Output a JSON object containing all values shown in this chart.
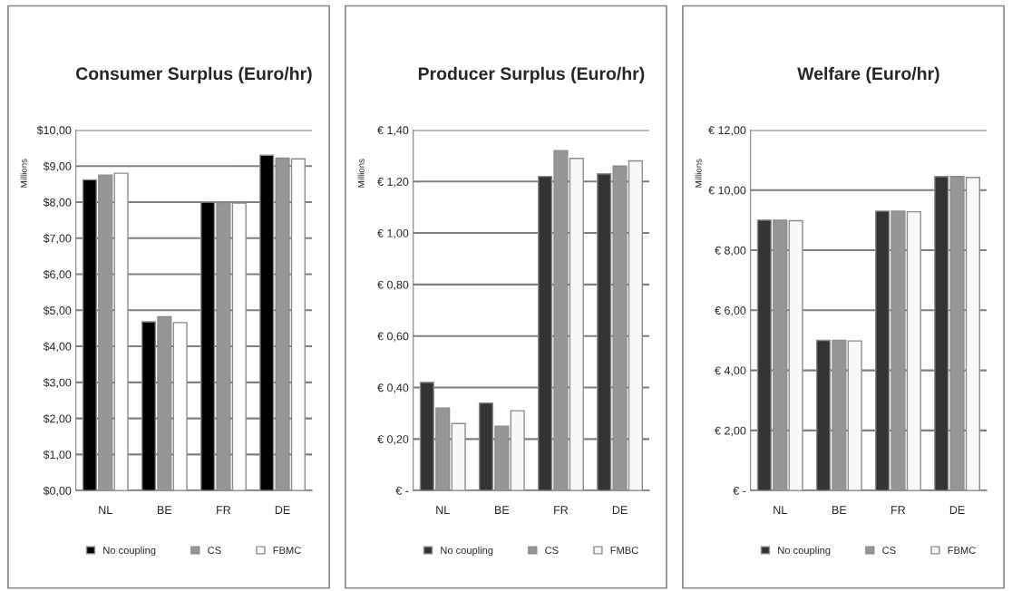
{
  "chart_data": [
    {
      "type": "bar",
      "title": "Consumer Surplus (Euro/hr)",
      "ylabel": "Millions",
      "categories": [
        "NL",
        "BE",
        "FR",
        "DE"
      ],
      "series": [
        {
          "name": "No coupling",
          "color": "#000000",
          "values": [
            8.62,
            4.68,
            8.0,
            9.3
          ]
        },
        {
          "name": "CS",
          "color": "#969696",
          "values": [
            8.75,
            4.82,
            7.98,
            9.22
          ]
        },
        {
          "name": "FBMC",
          "color": "#ffffff",
          "values": [
            8.8,
            4.66,
            7.97,
            9.2
          ]
        }
      ],
      "ylim": [
        0,
        10
      ],
      "yticks": [
        {
          "value": 0,
          "label": "$0,00"
        },
        {
          "value": 1,
          "label": "$1,00"
        },
        {
          "value": 2,
          "label": "$2,00"
        },
        {
          "value": 3,
          "label": "$3,00"
        },
        {
          "value": 4,
          "label": "$4,00"
        },
        {
          "value": 5,
          "label": "$5,00"
        },
        {
          "value": 6,
          "label": "$6,00"
        },
        {
          "value": 7,
          "label": "$7,00"
        },
        {
          "value": 8,
          "label": "$8,00"
        },
        {
          "value": 9,
          "label": "$9,00"
        },
        {
          "value": 10,
          "label": "$10,00"
        }
      ],
      "grid": "y",
      "legend": "bottom"
    },
    {
      "type": "bar",
      "title": "Producer Surplus (Euro/hr)",
      "ylabel": "Millions",
      "categories": [
        "NL",
        "BE",
        "FR",
        "DE"
      ],
      "series": [
        {
          "name": "No coupling",
          "color": "#333333",
          "values": [
            0.42,
            0.34,
            1.22,
            1.23
          ]
        },
        {
          "name": "CS",
          "color": "#969696",
          "values": [
            0.32,
            0.25,
            1.32,
            1.26
          ]
        },
        {
          "name": "FMBC",
          "color": "#f8f8f8",
          "values": [
            0.26,
            0.31,
            1.29,
            1.28
          ]
        }
      ],
      "ylim": [
        0,
        1.4
      ],
      "yticks": [
        {
          "value": 0,
          "label": "€ -"
        },
        {
          "value": 0.2,
          "label": "€ 0,20"
        },
        {
          "value": 0.4,
          "label": "€ 0,40"
        },
        {
          "value": 0.6,
          "label": "€ 0,60"
        },
        {
          "value": 0.8,
          "label": "€ 0,80"
        },
        {
          "value": 1.0,
          "label": "€ 1,00"
        },
        {
          "value": 1.2,
          "label": "€ 1,20"
        },
        {
          "value": 1.4,
          "label": "€ 1,40"
        }
      ],
      "grid": "y",
      "legend": "bottom"
    },
    {
      "type": "bar",
      "title": "Welfare (Euro/hr)",
      "ylabel": "Millions",
      "categories": [
        "NL",
        "BE",
        "FR",
        "DE"
      ],
      "series": [
        {
          "name": "No coupling",
          "color": "#333333",
          "values": [
            9.0,
            5.0,
            9.3,
            10.45
          ]
        },
        {
          "name": "CS",
          "color": "#969696",
          "values": [
            9.0,
            5.0,
            9.3,
            10.45
          ]
        },
        {
          "name": "FBMC",
          "color": "#f8f8f8",
          "values": [
            8.98,
            4.98,
            9.28,
            10.42
          ]
        }
      ],
      "ylim": [
        0,
        12
      ],
      "yticks": [
        {
          "value": 0,
          "label": "€ -"
        },
        {
          "value": 2,
          "label": "€ 2,00"
        },
        {
          "value": 4,
          "label": "€ 4,00"
        },
        {
          "value": 6,
          "label": "€ 6,00"
        },
        {
          "value": 8,
          "label": "€ 8,00"
        },
        {
          "value": 10,
          "label": "€ 10,00"
        },
        {
          "value": 12,
          "label": "€ 12,00"
        }
      ],
      "grid": "y",
      "legend": "bottom"
    }
  ]
}
